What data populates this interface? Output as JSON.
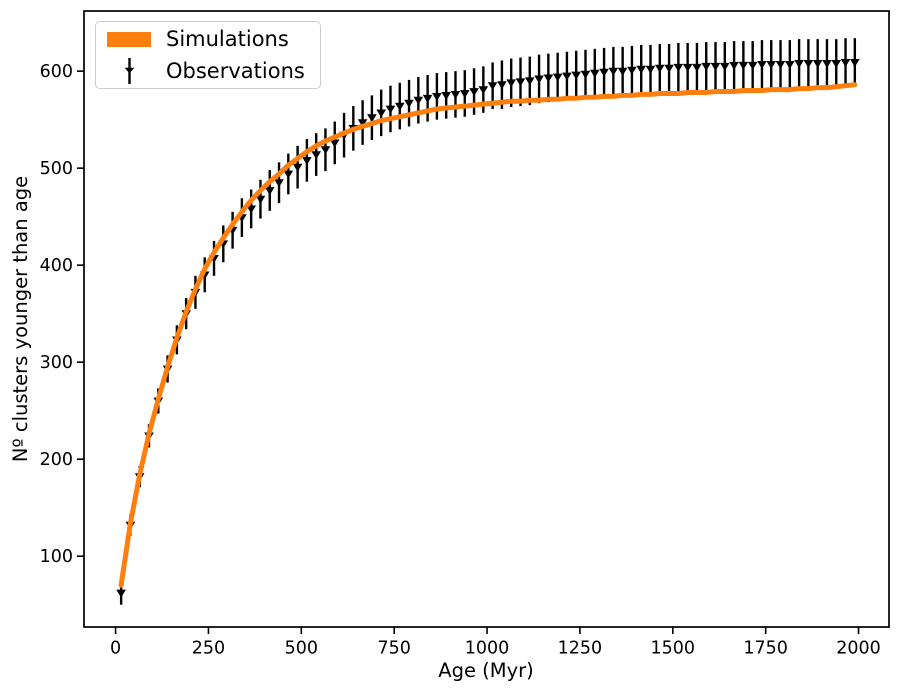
{
  "figure": {
    "background_color": "#ffffff",
    "spine_color": "#000000",
    "legend_border_color": "#cccccc"
  },
  "chart_data": {
    "type": "line",
    "title": "",
    "xlabel": "Age (Myr)",
    "ylabel": "Nº clusters younger than age",
    "xlim": [
      -85,
      2082
    ],
    "ylim": [
      27,
      662
    ],
    "xticks": [
      0,
      250,
      500,
      750,
      1000,
      1250,
      1500,
      1750,
      2000
    ],
    "yticks": [
      100,
      200,
      300,
      400,
      500,
      600
    ],
    "grid": false,
    "legend": {
      "position": "upper-left",
      "entries": [
        {
          "label": "Simulations",
          "type": "line",
          "color": "#ff7f0e"
        },
        {
          "label": "Observations",
          "type": "errorbar",
          "marker": "triangle-down",
          "color": "#000000"
        }
      ]
    },
    "series": [
      {
        "name": "Simulations",
        "type": "line",
        "color": "#ff7f0e",
        "linewidth": 5,
        "x": [
          15,
          40,
          65,
          90,
          115,
          140,
          165,
          190,
          215,
          240,
          265,
          290,
          315,
          340,
          365,
          390,
          415,
          440,
          465,
          490,
          515,
          540,
          565,
          590,
          615,
          640,
          665,
          690,
          715,
          740,
          765,
          790,
          815,
          840,
          865,
          890,
          915,
          940,
          965,
          990,
          1015,
          1040,
          1065,
          1090,
          1115,
          1140,
          1165,
          1190,
          1215,
          1240,
          1265,
          1290,
          1315,
          1340,
          1365,
          1390,
          1415,
          1440,
          1465,
          1490,
          1515,
          1540,
          1565,
          1590,
          1615,
          1640,
          1665,
          1690,
          1715,
          1740,
          1765,
          1790,
          1815,
          1840,
          1865,
          1890,
          1915,
          1940,
          1965,
          1990
        ],
        "y": [
          70,
          134,
          184,
          226,
          262,
          295,
          325,
          352,
          375,
          396,
          413,
          428,
          442,
          455,
          467,
          477,
          486,
          494,
          503,
          510,
          517,
          523,
          528,
          532,
          536,
          540,
          543,
          546,
          549,
          551,
          553,
          555,
          557,
          559,
          561,
          562,
          563,
          564,
          565,
          566,
          567,
          568,
          569,
          569,
          570,
          570,
          571,
          571,
          572,
          572,
          573,
          573,
          574,
          574,
          575,
          575,
          576,
          576,
          577,
          577,
          577,
          578,
          578,
          578,
          579,
          579,
          579,
          580,
          580,
          580,
          581,
          581,
          581,
          582,
          582,
          583,
          583,
          584,
          585,
          586
        ]
      },
      {
        "name": "Observations",
        "type": "errorbar",
        "color": "#000000",
        "marker": "triangle-down",
        "x": [
          15,
          40,
          65,
          90,
          115,
          140,
          165,
          190,
          215,
          240,
          265,
          290,
          315,
          340,
          365,
          390,
          415,
          440,
          465,
          490,
          515,
          540,
          565,
          590,
          615,
          640,
          665,
          690,
          715,
          740,
          765,
          790,
          815,
          840,
          865,
          890,
          915,
          940,
          965,
          990,
          1015,
          1040,
          1065,
          1090,
          1115,
          1140,
          1165,
          1190,
          1215,
          1240,
          1265,
          1290,
          1315,
          1340,
          1365,
          1390,
          1415,
          1440,
          1465,
          1490,
          1515,
          1540,
          1565,
          1590,
          1615,
          1640,
          1665,
          1690,
          1715,
          1740,
          1765,
          1790,
          1815,
          1840,
          1865,
          1890,
          1915,
          1940,
          1965,
          1990
        ],
        "y": [
          62,
          132,
          182,
          224,
          260,
          293,
          323,
          350,
          372,
          390,
          407,
          422,
          436,
          449,
          458,
          468,
          477,
          485,
          494,
          501,
          508,
          514,
          519,
          526,
          534,
          541,
          547,
          552,
          557,
          561,
          564,
          567,
          570,
          572,
          574,
          575,
          576,
          577,
          579,
          581,
          585,
          586,
          588,
          589,
          590,
          592,
          593,
          594,
          595,
          596,
          597,
          598,
          599,
          600,
          600,
          601,
          602,
          602,
          603,
          603,
          604,
          604,
          604,
          605,
          605,
          605,
          606,
          606,
          606,
          607,
          607,
          607,
          607,
          608,
          608,
          608,
          608,
          608,
          609,
          609
        ],
        "yerr": [
          12,
          11,
          11,
          12,
          13,
          14,
          15,
          16,
          17,
          18,
          18,
          19,
          19,
          20,
          20,
          20,
          21,
          21,
          21,
          22,
          22,
          22,
          22,
          22,
          23,
          23,
          23,
          23,
          24,
          24,
          24,
          24,
          24,
          24,
          24,
          24,
          24,
          24,
          24,
          24,
          24,
          25,
          25,
          25,
          25,
          25,
          25,
          25,
          25,
          25,
          25,
          25,
          25,
          25,
          25,
          25,
          25,
          25,
          25,
          25,
          25,
          25,
          25,
          25,
          25,
          25,
          25,
          25,
          25,
          25,
          25,
          25,
          25,
          25,
          25,
          25,
          25,
          25,
          25,
          25
        ]
      }
    ]
  }
}
